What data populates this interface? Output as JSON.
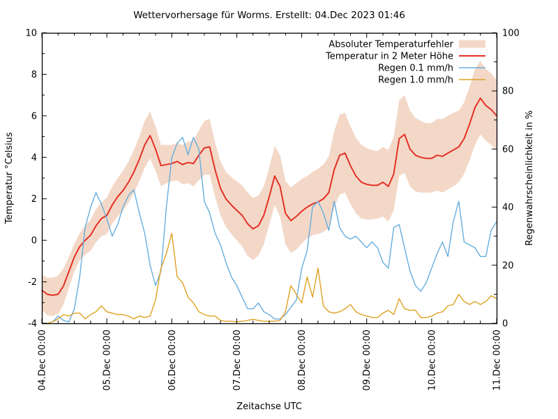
{
  "title": "Wettervorhersage für Worms. Erstellt: 04.Dec 2023 01:46",
  "colors": {
    "error_band": "#f3d8c8",
    "temperature_line": "#e53024",
    "rain_01": "#66aedd",
    "rain_10": "#dfa123",
    "axis": "#000000"
  },
  "axes": {
    "y_left": {
      "label": "Temperatur °Celsius",
      "ticks": [
        "10",
        "8",
        "6",
        "4",
        "2",
        "0",
        "-2",
        "-4"
      ]
    },
    "y_right": {
      "label": "Regenwahrscheinlichkeit in %",
      "ticks": [
        "100",
        "80",
        "60",
        "40",
        "20",
        "0"
      ]
    },
    "x": {
      "label": "Zeitachse UTC",
      "ticks": [
        "04.Dec 00:00",
        "05.Dec 00:00",
        "06.Dec 00:00",
        "07.Dec 00:00",
        "08.Dec 00:00",
        "09.Dec 00:00",
        "10.Dec 00:00",
        "11.Dec 00:00"
      ]
    }
  },
  "chart_data": {
    "type": "line",
    "title": "Wettervorhersage für Worms. Erstellt: 04.Dec 2023 01:46",
    "xlabel": "Zeitachse UTC",
    "ylabel_left": "Temperatur °Celsius",
    "ylabel_right": "Regenwahrscheinlichkeit in %",
    "x_start": "04.Dec 00:00 UTC",
    "x_step_hours": 2,
    "x_total_hours": 168,
    "temp_axis_range": [
      -4,
      10
    ],
    "pct_axis_range": [
      0,
      100
    ],
    "grid": false,
    "legend_position": "top-right-inside",
    "series": [
      {
        "name": "Absoluter Temperaturfehler",
        "type": "band",
        "axis": "temp",
        "upper": [
          -1.65,
          -1.8,
          -1.8,
          -1.7,
          -1.35,
          -0.8,
          -0.15,
          0.35,
          0.7,
          1.0,
          1.5,
          1.85,
          2.05,
          2.6,
          3.0,
          3.35,
          3.8,
          4.35,
          5.0,
          5.75,
          6.2,
          5.5,
          4.6,
          4.6,
          4.6,
          4.7,
          4.6,
          4.75,
          4.8,
          5.3,
          5.75,
          5.85,
          4.7,
          3.8,
          3.3,
          3.05,
          2.85,
          2.65,
          2.3,
          2.05,
          2.15,
          2.6,
          3.5,
          4.55,
          4.1,
          2.85,
          2.55,
          2.75,
          2.95,
          3.1,
          3.3,
          3.45,
          3.65,
          4.05,
          5.25,
          6.05,
          6.15,
          5.5,
          4.95,
          4.6,
          4.45,
          4.35,
          4.3,
          4.5,
          4.35,
          5.0,
          6.75,
          7.0,
          6.25,
          5.9,
          5.75,
          5.65,
          5.65,
          5.85,
          5.85,
          6.0,
          6.15,
          6.25,
          6.65,
          7.4,
          8.25,
          8.65,
          8.25,
          8.05,
          7.7
        ],
        "lower": [
          -3.35,
          -3.6,
          -3.65,
          -3.55,
          -3.1,
          -2.3,
          -1.5,
          -0.95,
          -0.7,
          -0.5,
          -0.1,
          0.2,
          0.3,
          0.8,
          1.15,
          1.45,
          1.8,
          2.3,
          2.85,
          3.5,
          3.95,
          3.35,
          2.6,
          2.75,
          2.85,
          2.9,
          2.7,
          2.75,
          2.6,
          2.9,
          3.15,
          3.15,
          2.1,
          1.2,
          0.65,
          0.3,
          0.0,
          -0.3,
          -0.75,
          -0.95,
          -0.75,
          -0.2,
          0.75,
          1.7,
          1.15,
          -0.2,
          -0.6,
          -0.45,
          -0.15,
          0.1,
          0.25,
          0.3,
          0.4,
          0.6,
          1.6,
          2.2,
          2.3,
          1.75,
          1.3,
          1.05,
          1.0,
          1.0,
          1.05,
          1.15,
          0.9,
          1.45,
          3.1,
          3.25,
          2.6,
          2.35,
          2.3,
          2.3,
          2.3,
          2.4,
          2.3,
          2.45,
          2.6,
          2.8,
          3.2,
          3.85,
          4.6,
          5.1,
          4.8,
          4.6,
          4.35
        ]
      },
      {
        "name": "Temperatur in 2 Meter Höhe",
        "type": "line",
        "axis": "temp",
        "values": [
          -2.4,
          -2.6,
          -2.65,
          -2.6,
          -2.2,
          -1.5,
          -0.8,
          -0.3,
          0.0,
          0.25,
          0.7,
          1.05,
          1.2,
          1.7,
          2.1,
          2.4,
          2.8,
          3.3,
          3.9,
          4.6,
          5.05,
          4.4,
          3.6,
          3.65,
          3.7,
          3.8,
          3.65,
          3.75,
          3.7,
          4.1,
          4.45,
          4.5,
          3.4,
          2.5,
          2.0,
          1.7,
          1.45,
          1.2,
          0.8,
          0.55,
          0.7,
          1.2,
          2.1,
          3.1,
          2.6,
          1.3,
          0.95,
          1.15,
          1.4,
          1.6,
          1.75,
          1.85,
          2.0,
          2.3,
          3.4,
          4.1,
          4.2,
          3.6,
          3.1,
          2.8,
          2.7,
          2.65,
          2.65,
          2.8,
          2.6,
          3.2,
          4.9,
          5.1,
          4.4,
          4.1,
          4.0,
          3.95,
          3.95,
          4.1,
          4.05,
          4.2,
          4.35,
          4.5,
          4.9,
          5.6,
          6.4,
          6.85,
          6.5,
          6.3,
          6.0
        ]
      },
      {
        "name": "Regen 0.1 mm/h",
        "type": "line",
        "axis": "pct",
        "values": [
          0,
          0,
          0.5,
          2.5,
          1,
          0.5,
          5,
          16,
          33,
          40,
          45,
          41,
          36,
          30,
          34,
          40,
          44,
          46,
          38,
          31,
          20,
          13,
          18,
          40,
          57,
          62,
          64,
          58,
          64,
          60,
          42,
          38,
          31,
          27,
          21,
          16,
          13,
          9,
          5,
          5,
          7,
          4,
          3,
          1.5,
          1.5,
          3,
          5.5,
          8,
          19,
          25,
          40,
          42,
          38,
          32,
          42,
          33,
          30,
          29,
          30,
          28,
          26,
          28,
          26,
          21,
          19,
          33,
          34,
          26,
          18,
          13,
          11,
          14,
          19,
          24,
          28,
          23,
          35,
          42,
          28,
          27,
          26,
          23,
          23,
          32,
          35
        ]
      },
      {
        "name": "Regen 1.0 mm/h",
        "type": "line",
        "axis": "pct",
        "values": [
          0,
          0,
          0.5,
          1.5,
          3,
          2.5,
          3.5,
          3.5,
          1.5,
          3,
          4,
          6,
          4,
          3.5,
          3,
          3,
          2.5,
          1.5,
          2.5,
          2,
          2.5,
          8,
          19,
          24,
          31,
          16,
          14,
          9,
          7,
          4,
          3,
          2.5,
          2.5,
          1,
          0.7,
          0.7,
          0.5,
          0.7,
          1,
          1.4,
          1,
          0.7,
          0.7,
          0.7,
          1,
          4,
          13,
          10,
          7,
          16,
          9,
          19,
          6,
          4,
          3.5,
          4,
          5,
          6.5,
          4,
          3,
          2.5,
          2,
          2,
          3.5,
          4.5,
          3,
          8.5,
          5,
          4.5,
          4.5,
          2,
          2,
          2.5,
          3.5,
          4,
          6,
          6.5,
          10,
          7.5,
          6.5,
          7.5,
          6.5,
          7.5,
          9.5,
          8.5
        ]
      }
    ]
  },
  "legend": {
    "items": [
      {
        "label": "Absoluter Temperaturfehler",
        "swatch": "band",
        "color_key": "error_band"
      },
      {
        "label": "Temperatur in 2 Meter Höhe",
        "swatch": "line",
        "color_key": "temperature_line"
      },
      {
        "label": "Regen 0.1 mm/h",
        "swatch": "line",
        "color_key": "rain_01"
      },
      {
        "label": "Regen 1.0 mm/h",
        "swatch": "line",
        "color_key": "rain_10"
      }
    ]
  }
}
